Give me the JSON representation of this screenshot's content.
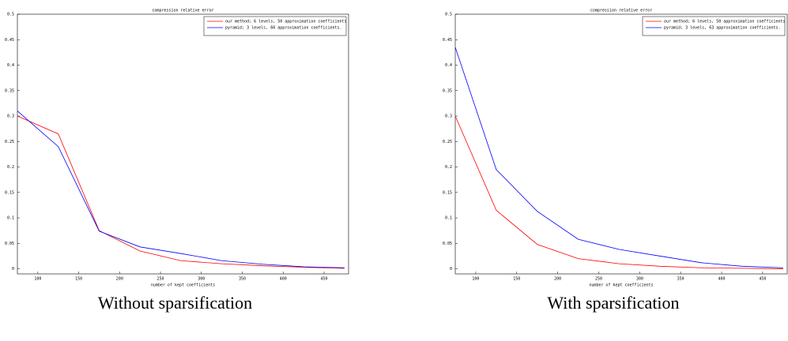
{
  "chart_data": [
    {
      "type": "line",
      "title": "compression relative error",
      "x_label": "number of kept coefficients",
      "caption": "Without sparsification",
      "x": [
        75,
        125,
        175,
        225,
        275,
        325,
        375,
        425,
        475
      ],
      "series": [
        {
          "name": "our method; 6 levels, 50 approximation coefficients",
          "color": "#ff0000",
          "values": [
            0.3,
            0.265,
            0.075,
            0.035,
            0.016,
            0.01,
            0.006,
            0.003,
            0.001
          ]
        },
        {
          "name": "pyramid; 3 levels, 60 approximation coefficients.",
          "color": "#0000ff",
          "values": [
            0.31,
            0.24,
            0.074,
            0.043,
            0.03,
            0.016,
            0.009,
            0.004,
            0.002
          ]
        }
      ],
      "xlim": [
        75,
        480
      ],
      "xticks": [
        100,
        150,
        200,
        250,
        300,
        350,
        400,
        450
      ],
      "ylim": [
        -0.01,
        0.5
      ],
      "yticks": [
        0,
        0.05,
        0.1,
        0.15,
        0.2,
        0.25,
        0.3,
        0.35,
        0.4,
        0.45,
        0.5
      ],
      "legend": "upper right"
    },
    {
      "type": "line",
      "title": "compression relative error",
      "x_label": "number of kept coefficients",
      "caption": "With sparsification",
      "x": [
        75,
        125,
        175,
        225,
        275,
        325,
        375,
        425,
        475
      ],
      "series": [
        {
          "name": "our method; 6 levels, 50 approximation coefficients",
          "color": "#ff0000",
          "values": [
            0.3,
            0.115,
            0.048,
            0.02,
            0.01,
            0.005,
            0.002,
            0.001,
            0
          ]
        },
        {
          "name": "pyramid; 3 levels, 63 approximation coefficients.",
          "color": "#0000ff",
          "values": [
            0.435,
            0.195,
            0.113,
            0.058,
            0.038,
            0.025,
            0.012,
            0.005,
            0.002
          ]
        }
      ],
      "xlim": [
        75,
        480
      ],
      "xticks": [
        100,
        150,
        200,
        250,
        300,
        350,
        400,
        450
      ],
      "ylim": [
        -0.01,
        0.5
      ],
      "yticks": [
        0,
        0.05,
        0.1,
        0.15,
        0.2,
        0.25,
        0.3,
        0.35,
        0.4,
        0.45,
        0.5
      ],
      "legend": "upper right"
    }
  ]
}
